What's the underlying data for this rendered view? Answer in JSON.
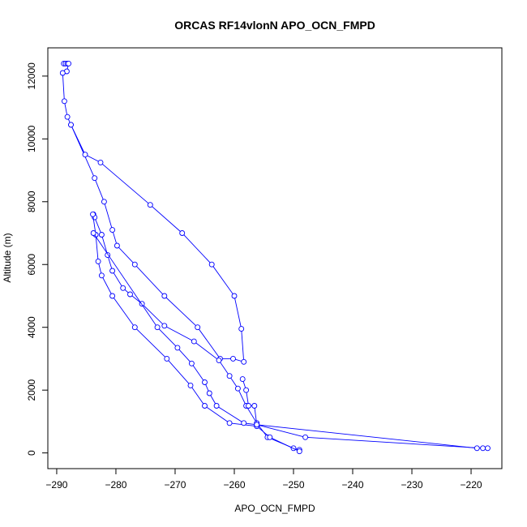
{
  "chart_data": {
    "type": "line",
    "title": "ORCAS RF14vlonN APO_OCN_FMPD",
    "xlabel": "APO_OCN_FMPD",
    "ylabel": "Altitude (m)",
    "xlim": [
      -291.5,
      -214.8
    ],
    "ylim": [
      -500,
      12900
    ],
    "xticks": [
      -290,
      -280,
      -270,
      -260,
      -250,
      -240,
      -230,
      -220
    ],
    "yticks": [
      0,
      2000,
      4000,
      6000,
      8000,
      10000,
      12000
    ],
    "grid": false,
    "legend": "none",
    "series_color": "#0000ff",
    "series": [
      {
        "points": [
          [
            -288.8,
            12400
          ],
          [
            -288.5,
            12400
          ],
          [
            -288.2,
            12400
          ],
          [
            -288.0,
            12400
          ],
          [
            -288.3,
            12150
          ],
          [
            -289.0,
            12100
          ],
          [
            -288.7,
            11200
          ],
          [
            -288.2,
            10700
          ],
          [
            -287.6,
            10450
          ],
          [
            -285.2,
            9500
          ],
          [
            -282.6,
            9250
          ],
          [
            -274.2,
            7900
          ],
          [
            -268.8,
            7000
          ],
          [
            -263.8,
            6000
          ],
          [
            -260.0,
            5000
          ],
          [
            -258.8,
            3950
          ],
          [
            -258.4,
            2900
          ],
          [
            -260.2,
            3000
          ],
          [
            -262.4,
            3000
          ],
          [
            -266.2,
            4000
          ],
          [
            -271.8,
            5000
          ],
          [
            -276.8,
            6000
          ],
          [
            -279.8,
            6600
          ],
          [
            -280.6,
            7100
          ],
          [
            -282.0,
            8000
          ],
          [
            -283.6,
            8750
          ],
          [
            -287.6,
            10450
          ]
        ]
      },
      {
        "points": [
          [
            -283.8,
            7600
          ],
          [
            -283.6,
            7500
          ],
          [
            -282.4,
            6950
          ],
          [
            -281.4,
            6300
          ],
          [
            -280.6,
            5800
          ],
          [
            -278.8,
            5250
          ],
          [
            -277.6,
            5050
          ],
          [
            -275.6,
            4750
          ],
          [
            -271.8,
            4050
          ],
          [
            -266.8,
            3550
          ],
          [
            -262.6,
            2950
          ],
          [
            -260.8,
            2450
          ],
          [
            -259.4,
            2050
          ],
          [
            -258.0,
            1500
          ],
          [
            -256.2,
            950
          ],
          [
            -254.4,
            500
          ],
          [
            -250.0,
            150
          ],
          [
            -249.0,
            100
          ]
        ]
      },
      {
        "points": [
          [
            -283.9,
            7600
          ],
          [
            -283.4,
            6950
          ],
          [
            -283.0,
            6100
          ],
          [
            -282.4,
            5650
          ],
          [
            -280.6,
            5000
          ],
          [
            -276.8,
            4000
          ],
          [
            -271.4,
            3000
          ],
          [
            -267.4,
            2150
          ],
          [
            -265.0,
            1500
          ],
          [
            -260.8,
            950
          ],
          [
            -256.2,
            850
          ],
          [
            -254.0,
            500
          ],
          [
            -249.0,
            50
          ]
        ]
      },
      {
        "points": [
          [
            -283.8,
            7000
          ],
          [
            -273.0,
            4000
          ],
          [
            -269.6,
            3350
          ],
          [
            -267.2,
            2850
          ],
          [
            -265.0,
            2250
          ],
          [
            -264.2,
            1900
          ],
          [
            -263.0,
            1500
          ],
          [
            -258.4,
            950
          ],
          [
            -256.2,
            900
          ],
          [
            -248.0,
            500
          ],
          [
            -218.0,
            150
          ],
          [
            -217.2,
            150
          ]
        ]
      },
      {
        "points": [
          [
            -258.6,
            2350
          ],
          [
            -258.0,
            2000
          ],
          [
            -257.6,
            1500
          ],
          [
            -256.6,
            1500
          ],
          [
            -256.2,
            900
          ],
          [
            -219.0,
            150
          ]
        ]
      }
    ]
  }
}
